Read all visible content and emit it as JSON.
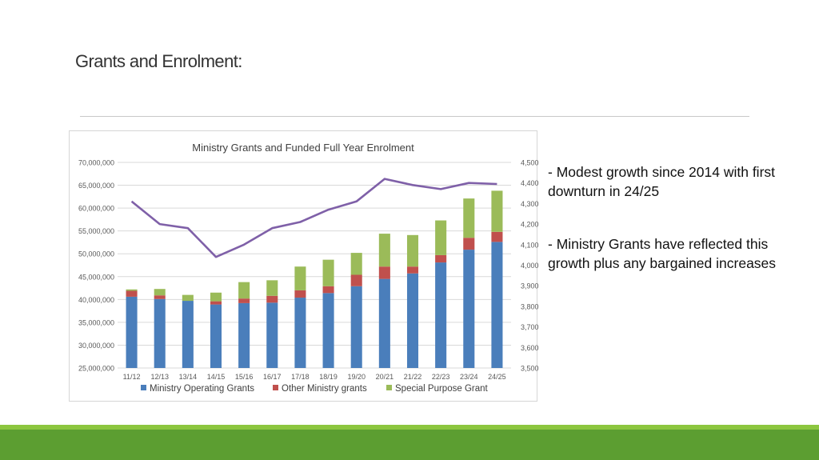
{
  "slide": {
    "title": "Grants and Enrolment:",
    "bullets": [
      "- Modest growth since 2014 with first downturn in 24/25",
      "- Ministry Grants have reflected this growth plus any bargained increases"
    ]
  },
  "colors": {
    "operating": "#4a7ebb",
    "other": "#c0504d",
    "special": "#9bbb59",
    "enrolment": "#7f60a8",
    "band_light": "#8cc63f",
    "band_dark": "#5c9e31"
  },
  "chart_data": {
    "type": "bar",
    "title": "Ministry Grants and Funded Full Year Enrolment",
    "stacked": true,
    "categories": [
      "11/12",
      "12/13",
      "13/14",
      "14/15",
      "15/16",
      "16/17",
      "17/18",
      "18/19",
      "19/20",
      "20/21",
      "21/22",
      "22/23",
      "23/24",
      "24/25"
    ],
    "series": [
      {
        "name": "Ministry Operating Grants",
        "values": [
          40600000,
          40100000,
          39700000,
          38900000,
          39200000,
          39300000,
          40400000,
          41400000,
          42900000,
          44500000,
          45700000,
          48100000,
          50900000,
          52600000
        ]
      },
      {
        "name": "Other Ministry grants",
        "values": [
          1300000,
          800000,
          0,
          700000,
          1000000,
          1500000,
          1600000,
          1500000,
          2500000,
          2700000,
          1500000,
          1600000,
          2600000,
          2200000
        ]
      },
      {
        "name": "Special Purpose Grant",
        "values": [
          300000,
          1400000,
          1300000,
          1900000,
          3600000,
          3400000,
          5200000,
          5800000,
          4800000,
          7200000,
          6900000,
          7600000,
          8600000,
          9000000
        ]
      }
    ],
    "line_series": {
      "values": [
        4310,
        4200,
        4180,
        4040,
        4100,
        4180,
        4210,
        4270,
        4310,
        4420,
        4390,
        4370,
        4400,
        4395
      ]
    },
    "y_left": {
      "ylim": [
        25000000,
        70000000
      ],
      "ticks": [
        "70,000,000",
        "65,000,000",
        "60,000,000",
        "55,000,000",
        "50,000,000",
        "45,000,000",
        "40,000,000",
        "35,000,000",
        "30,000,000",
        "25,000,000"
      ]
    },
    "y_right": {
      "ylim": [
        3500,
        4500
      ],
      "ticks": [
        "4,500",
        "4,400",
        "4,300",
        "4,200",
        "4,100",
        "4,000",
        "3,900",
        "3,800",
        "3,700",
        "3,600",
        "3,500"
      ]
    },
    "grid": true,
    "legend_position": "bottom"
  }
}
